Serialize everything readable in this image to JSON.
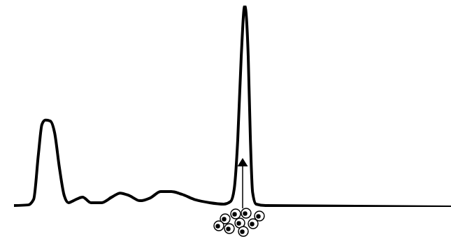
{
  "chart_data": {
    "type": "line",
    "x": [
      0,
      3.2,
      4.5,
      5.6,
      6.4,
      7.2,
      8.3,
      9.3,
      10.4,
      11.5,
      12.5,
      13.6,
      15.7,
      17.6,
      20,
      22.4,
      24.3,
      26.4,
      28.8,
      31.2,
      33.6,
      36,
      38.4,
      41.6,
      44.8,
      48,
      49.6,
      50.4,
      51.2,
      52,
      52.8,
      53.6,
      54.1,
      54.6,
      55.4,
      57.6,
      100
    ],
    "values": [
      0.7,
      1.0,
      3.8,
      26.4,
      41.0,
      43.1,
      42.7,
      36.8,
      19.4,
      5.6,
      2.1,
      3.1,
      4.9,
      2.1,
      2.1,
      4.9,
      6.9,
      5.6,
      3.1,
      4.5,
      7.6,
      7.6,
      6.3,
      3.5,
      2.1,
      1.4,
      2.8,
      9.0,
      33.3,
      74.7,
      100,
      74.7,
      33.3,
      7.3,
      1.4,
      0.7,
      0
    ],
    "color": "#000000",
    "xlim": [
      0,
      100
    ],
    "ylim": [
      0,
      100
    ],
    "tick_labels": false,
    "grid": false
  }
}
